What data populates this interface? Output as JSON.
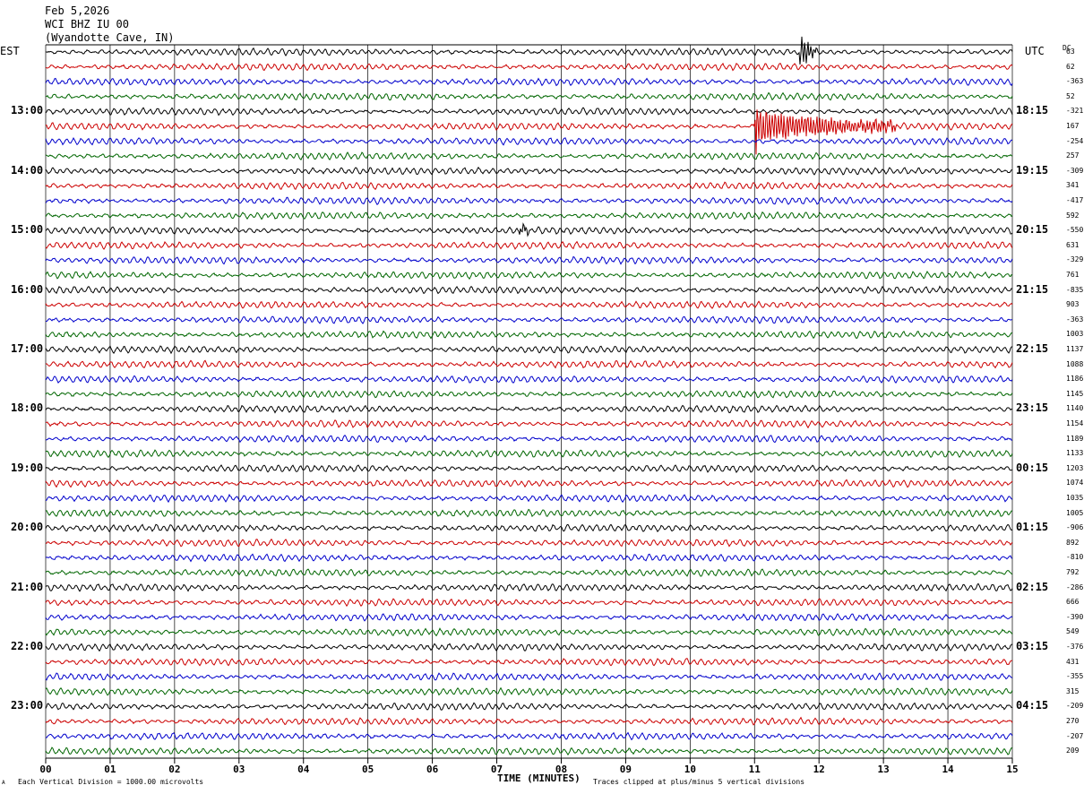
{
  "header": {
    "date": "Feb 5,2026",
    "station": "WCI BHZ IU 00",
    "location": "(Wyandotte Cave, IN)"
  },
  "left_tz": "EST",
  "right_tz": "UTC",
  "dc_label": "DC",
  "footer": {
    "division_note": "Each Vertical Division = 1000.00 microvolts",
    "clip_note": "Traces clipped at plus/minus 5 vertical divisions",
    "corner_mark": "A"
  },
  "colors": {
    "trace_cycle": [
      "#000000",
      "#cc0000",
      "#0000cc",
      "#006600"
    ],
    "grid": "#000000"
  },
  "chart_data": {
    "type": "line",
    "description_type": "helicorder",
    "xlabel": "TIME (MINUTES)",
    "x_ticks": [
      "00",
      "01",
      "02",
      "03",
      "04",
      "05",
      "06",
      "07",
      "08",
      "09",
      "10",
      "11",
      "12",
      "13",
      "14",
      "15"
    ],
    "xlim": [
      0,
      15
    ],
    "rows": 48,
    "left_hour_labels": [
      "13:00",
      "14:00",
      "15:00",
      "16:00",
      "17:00",
      "18:00",
      "19:00",
      "20:00",
      "21:00",
      "22:00",
      "23:00"
    ],
    "right_hour_labels": [
      "18:15",
      "19:15",
      "20:15",
      "21:15",
      "22:15",
      "23:15",
      "00:15",
      "01:15",
      "02:15",
      "03:15",
      "04:15"
    ],
    "dc_offsets": [
      "63",
      "62",
      "-363",
      "52",
      "-321",
      "167",
      "-254",
      "257",
      "-309",
      "341",
      "-417",
      "592",
      "-550",
      "631",
      "-329",
      "761",
      "-835",
      "903",
      "-363",
      "1003",
      "1137",
      "1088",
      "1186",
      "1145",
      "1140",
      "1154",
      "1189",
      "1133",
      "1203",
      "1074",
      "1035",
      "1005",
      "-906",
      "892",
      "-810",
      "792",
      "-286",
      "666",
      "-390",
      "549",
      "-376",
      "431",
      "-355",
      "315",
      "-209",
      "270",
      "-207",
      "209"
    ],
    "events": [
      {
        "row": 0,
        "minute": 11.7,
        "amplitude": "large",
        "duration_min": 0.3
      },
      {
        "row": 5,
        "minute": 11.0,
        "amplitude": "clipped",
        "duration_min": 2.2
      },
      {
        "row": 12,
        "minute": 7.35,
        "amplitude": "medium",
        "duration_min": 0.2
      }
    ]
  }
}
